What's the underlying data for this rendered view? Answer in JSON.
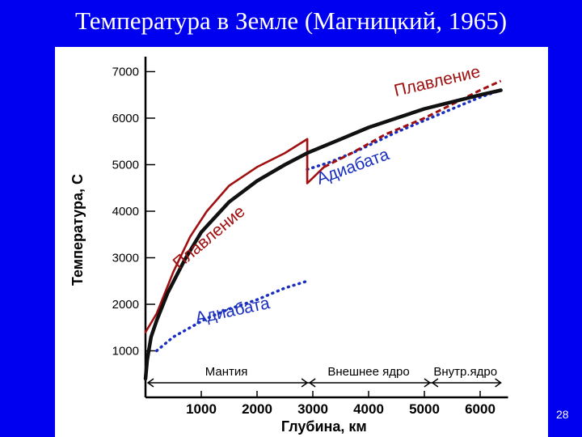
{
  "slide": {
    "title": "Температура в Земле (Магницкий, 1965)",
    "page_number": "28"
  },
  "colors": {
    "background": "#0000f0",
    "panel": "#ffffff",
    "temperature": "#111111",
    "melting": "#a01010",
    "adiabat": "#1a2fbf"
  },
  "chart_data": {
    "type": "line",
    "title": "",
    "xlabel": "Глубина, км",
    "ylabel": "Температура, С",
    "xlim": [
      0,
      6500
    ],
    "ylim": [
      0,
      7400
    ],
    "x_ticks": [
      1000,
      2000,
      3000,
      4000,
      5000,
      6000
    ],
    "y_ticks": [
      1000,
      2000,
      3000,
      4000,
      5000,
      6000,
      7000
    ],
    "grid": false,
    "regions": [
      {
        "label": "Мантия",
        "from": 0,
        "to": 2900
      },
      {
        "label": "Внешнее ядро",
        "from": 2900,
        "to": 5100
      },
      {
        "label": "Внутр.ядро",
        "from": 5100,
        "to": 6371
      }
    ],
    "series": [
      {
        "key": "temperature",
        "style": "solid-thick",
        "x": [
          0,
          30,
          100,
          200,
          400,
          700,
          1000,
          1500,
          2000,
          2500,
          2900,
          3500,
          4000,
          4500,
          5000,
          5500,
          6000,
          6371
        ],
        "y": [
          400,
          800,
          1300,
          1650,
          2250,
          2950,
          3550,
          4200,
          4650,
          5000,
          5250,
          5550,
          5800,
          6000,
          6200,
          6350,
          6500,
          6600
        ]
      },
      {
        "key": "melting_mantle",
        "style": "solid",
        "x": [
          0,
          200,
          500,
          800,
          1100,
          1500,
          2000,
          2500,
          2900
        ],
        "y": [
          1400,
          1800,
          2700,
          3450,
          4000,
          4550,
          4950,
          5250,
          5550
        ]
      },
      {
        "key": "melting_jump",
        "style": "solid",
        "x": [
          2900,
          2900,
          3200
        ],
        "y": [
          5550,
          4600,
          4950
        ]
      },
      {
        "key": "adiabat_lower",
        "style": "dotted",
        "x": [
          200,
          500,
          800,
          1100,
          1500,
          2000,
          2500,
          2900
        ],
        "y": [
          1000,
          1300,
          1500,
          1700,
          1900,
          2100,
          2350,
          2500
        ]
      },
      {
        "key": "adiabat_upper",
        "style": "dotted",
        "x": [
          2900,
          3300,
          3800,
          4500,
          5000,
          5500,
          6000,
          6371
        ],
        "y": [
          4900,
          5050,
          5300,
          5700,
          5950,
          6200,
          6450,
          6600
        ]
      },
      {
        "key": "melting_core",
        "style": "dashed",
        "x": [
          3200,
          3700,
          4300,
          5000,
          5500,
          6000,
          6371
        ],
        "y": [
          4950,
          5250,
          5650,
          6000,
          6300,
          6600,
          6800
        ]
      }
    ],
    "annotations": [
      {
        "text": "Плавление",
        "x": 1200,
        "y": 3350,
        "angle": -40,
        "color": "melting"
      },
      {
        "text": "Адиабата",
        "x": 1580,
        "y": 1750,
        "angle": -12,
        "color": "adiabat"
      },
      {
        "text": "Адиабата",
        "x": 3750,
        "y": 4850,
        "angle": -20,
        "color": "adiabat"
      },
      {
        "text": "Плавление",
        "x": 5250,
        "y": 6680,
        "angle": -13,
        "color": "melting"
      }
    ]
  }
}
